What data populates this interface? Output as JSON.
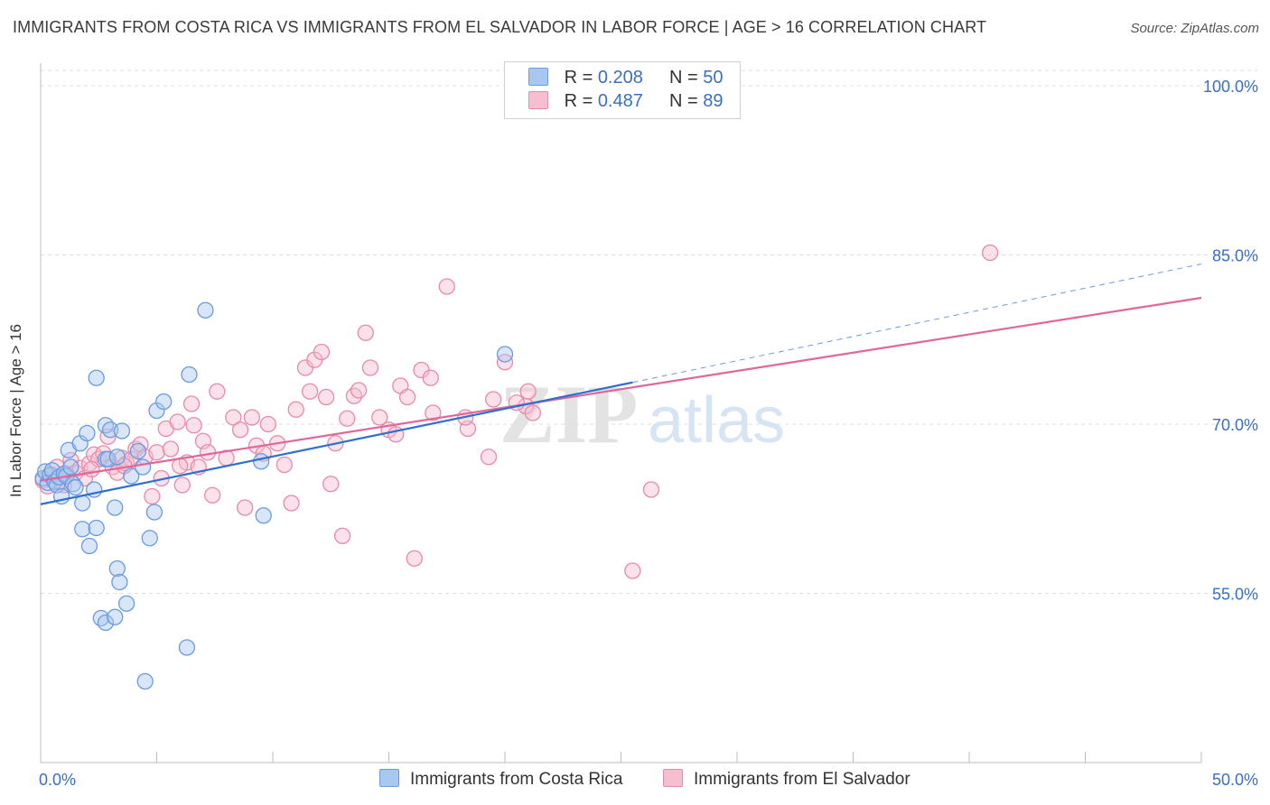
{
  "header": {
    "title": "IMMIGRANTS FROM COSTA RICA VS IMMIGRANTS FROM EL SALVADOR IN LABOR FORCE | AGE > 16 CORRELATION CHART",
    "source": "Source: ZipAtlas.com"
  },
  "watermark": {
    "zip": "ZIP",
    "atlas": "atlas"
  },
  "legend": {
    "rows": [
      {
        "r_label": "R = ",
        "r_value": "0.208",
        "n_label": "N = ",
        "n_value": "50"
      },
      {
        "r_label": "R = ",
        "r_value": "0.487",
        "n_label": "N = ",
        "n_value": "89"
      }
    ]
  },
  "colors": {
    "blue_fill": "#a8c8f0",
    "blue_stroke": "#6a9be0",
    "blue_line": "#2e6fd0",
    "pink_fill": "#f6bfd0",
    "pink_stroke": "#e88aa8",
    "pink_line": "#e0679a",
    "tick_text": "#3a6fc4",
    "grid": "#dddddd"
  },
  "chart_data": {
    "type": "scatter",
    "title": "IMMIGRANTS FROM COSTA RICA VS IMMIGRANTS FROM EL SALVADOR IN LABOR FORCE | AGE > 16 CORRELATION CHART",
    "xlabel": "",
    "ylabel": "In Labor Force | Age > 16",
    "xlim": [
      0,
      50
    ],
    "ylim": [
      40,
      102
    ],
    "x_tick_labels": [
      "0.0%",
      "50.0%"
    ],
    "y_ticks": [
      55,
      70,
      85,
      100
    ],
    "y_tick_labels": [
      "55.0%",
      "70.0%",
      "85.0%",
      "100.0%"
    ],
    "grid": true,
    "legend_position": "top-center",
    "series": [
      {
        "name": "Immigrants from Costa Rica",
        "color": "#a8c8f0",
        "trend": {
          "x": [
            0,
            25.5
          ],
          "y": [
            62.9,
            73.7
          ],
          "dashed_extension_to": [
            50,
            84.2
          ]
        },
        "points": [
          [
            0.1,
            65.2
          ],
          [
            0.2,
            65.8
          ],
          [
            0.3,
            64.8
          ],
          [
            0.4,
            65.5
          ],
          [
            0.5,
            65.9
          ],
          [
            0.6,
            64.9
          ],
          [
            0.7,
            64.6
          ],
          [
            0.8,
            65.3
          ],
          [
            0.9,
            63.6
          ],
          [
            1.0,
            65.6
          ],
          [
            1.1,
            65.4
          ],
          [
            1.2,
            67.7
          ],
          [
            1.3,
            66.2
          ],
          [
            1.4,
            64.7
          ],
          [
            1.5,
            64.4
          ],
          [
            1.7,
            68.3
          ],
          [
            1.8,
            60.7
          ],
          [
            1.8,
            63.0
          ],
          [
            2.0,
            69.2
          ],
          [
            2.1,
            59.2
          ],
          [
            2.3,
            64.2
          ],
          [
            2.4,
            74.1
          ],
          [
            2.4,
            60.8
          ],
          [
            2.6,
            52.8
          ],
          [
            2.8,
            69.9
          ],
          [
            2.8,
            66.9
          ],
          [
            2.8,
            52.4
          ],
          [
            2.9,
            66.9
          ],
          [
            3.0,
            69.5
          ],
          [
            3.2,
            52.9
          ],
          [
            3.2,
            62.6
          ],
          [
            3.3,
            67.1
          ],
          [
            3.3,
            57.2
          ],
          [
            3.4,
            56.0
          ],
          [
            3.5,
            69.4
          ],
          [
            3.7,
            54.1
          ],
          [
            3.9,
            65.4
          ],
          [
            4.2,
            67.6
          ],
          [
            4.4,
            66.2
          ],
          [
            4.5,
            47.2
          ],
          [
            4.7,
            59.9
          ],
          [
            4.9,
            62.2
          ],
          [
            5.0,
            71.2
          ],
          [
            5.3,
            72.0
          ],
          [
            6.3,
            50.2
          ],
          [
            6.4,
            74.4
          ],
          [
            7.1,
            80.1
          ],
          [
            9.5,
            66.7
          ],
          [
            9.6,
            61.9
          ],
          [
            20.0,
            76.2
          ]
        ]
      },
      {
        "name": "Immigrants from El Salvador",
        "color": "#f6bfd0",
        "trend": {
          "x": [
            0,
            50
          ],
          "y": [
            65.0,
            81.2
          ]
        },
        "points": [
          [
            0.1,
            65.0
          ],
          [
            0.3,
            64.5
          ],
          [
            0.5,
            65.5
          ],
          [
            0.7,
            66.2
          ],
          [
            0.9,
            64.9
          ],
          [
            1.1,
            65.6
          ],
          [
            1.3,
            66.8
          ],
          [
            1.5,
            65.7
          ],
          [
            1.7,
            66.1
          ],
          [
            1.9,
            65.2
          ],
          [
            2.1,
            66.5
          ],
          [
            2.3,
            67.3
          ],
          [
            2.5,
            66.9
          ],
          [
            2.7,
            67.4
          ],
          [
            2.9,
            68.9
          ],
          [
            3.1,
            66.2
          ],
          [
            3.3,
            65.7
          ],
          [
            3.5,
            67.0
          ],
          [
            3.7,
            66.5
          ],
          [
            3.9,
            66.9
          ],
          [
            4.1,
            67.8
          ],
          [
            4.3,
            68.2
          ],
          [
            4.5,
            67.1
          ],
          [
            4.8,
            63.6
          ],
          [
            5.0,
            67.5
          ],
          [
            5.2,
            65.2
          ],
          [
            5.4,
            69.6
          ],
          [
            5.6,
            67.8
          ],
          [
            5.9,
            70.2
          ],
          [
            6.1,
            64.6
          ],
          [
            6.3,
            66.6
          ],
          [
            6.5,
            71.8
          ],
          [
            6.6,
            69.9
          ],
          [
            6.8,
            66.2
          ],
          [
            7.0,
            68.5
          ],
          [
            7.2,
            67.5
          ],
          [
            7.4,
            63.7
          ],
          [
            7.6,
            72.9
          ],
          [
            8.0,
            67.0
          ],
          [
            8.3,
            70.6
          ],
          [
            8.6,
            69.5
          ],
          [
            8.8,
            62.6
          ],
          [
            9.1,
            70.6
          ],
          [
            9.3,
            68.1
          ],
          [
            9.6,
            67.4
          ],
          [
            9.8,
            70.0
          ],
          [
            10.2,
            68.3
          ],
          [
            10.5,
            66.4
          ],
          [
            10.8,
            63.0
          ],
          [
            11.0,
            71.3
          ],
          [
            11.4,
            75.0
          ],
          [
            11.6,
            72.9
          ],
          [
            11.8,
            75.7
          ],
          [
            12.1,
            76.4
          ],
          [
            12.3,
            72.4
          ],
          [
            12.5,
            64.7
          ],
          [
            12.7,
            68.3
          ],
          [
            13.0,
            60.1
          ],
          [
            13.2,
            70.5
          ],
          [
            13.5,
            72.5
          ],
          [
            13.7,
            73.0
          ],
          [
            14.0,
            78.1
          ],
          [
            14.2,
            75.0
          ],
          [
            14.6,
            70.6
          ],
          [
            15.0,
            69.5
          ],
          [
            15.3,
            69.1
          ],
          [
            15.5,
            73.4
          ],
          [
            15.8,
            72.4
          ],
          [
            16.1,
            58.1
          ],
          [
            16.4,
            74.8
          ],
          [
            16.8,
            74.1
          ],
          [
            16.9,
            71.0
          ],
          [
            17.5,
            82.2
          ],
          [
            18.4,
            69.6
          ],
          [
            18.3,
            70.6
          ],
          [
            19.3,
            67.1
          ],
          [
            19.5,
            72.2
          ],
          [
            20.0,
            75.5
          ],
          [
            20.9,
            71.6
          ],
          [
            20.5,
            71.9
          ],
          [
            21.0,
            72.9
          ],
          [
            21.2,
            71.0
          ],
          [
            25.5,
            57.0
          ],
          [
            26.3,
            64.2
          ],
          [
            40.9,
            85.2
          ],
          [
            1.0,
            64.6
          ],
          [
            2.2,
            66.0
          ],
          [
            3.6,
            66.3
          ],
          [
            6.0,
            66.3
          ]
        ]
      }
    ]
  },
  "bottom_legend": {
    "series1": "Immigrants from Costa Rica",
    "series2": "Immigrants from El Salvador"
  }
}
